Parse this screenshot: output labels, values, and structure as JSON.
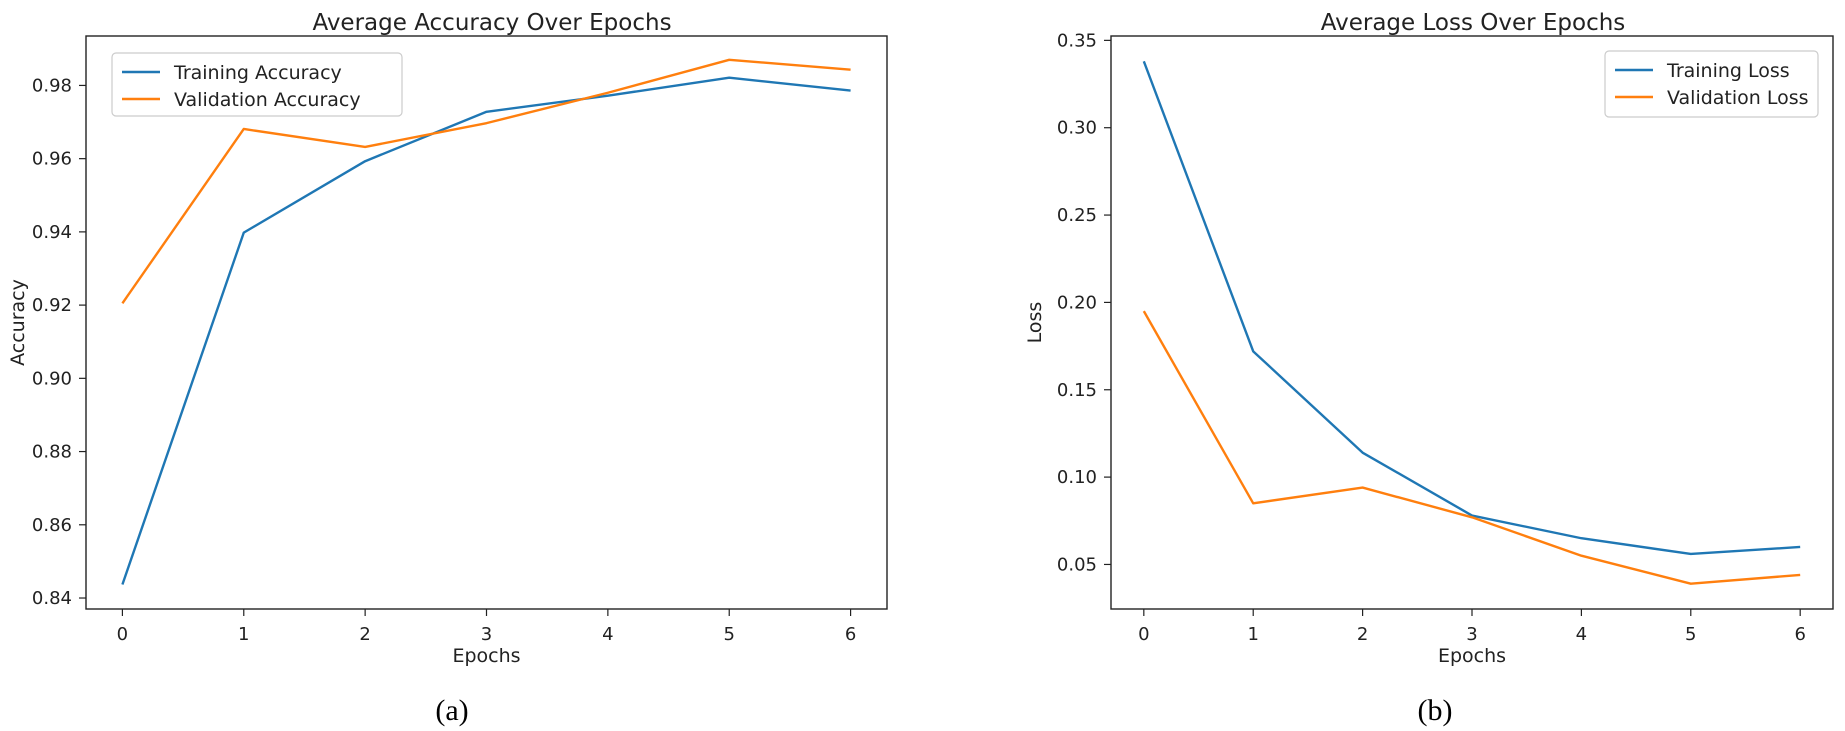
{
  "chart_data": [
    {
      "type": "line",
      "title": "Average Accuracy Over Epochs",
      "xlabel": "Epochs",
      "ylabel": "Accuracy",
      "x": [
        0,
        1,
        2,
        3,
        4,
        5,
        6
      ],
      "xticks": [
        "0",
        "1",
        "2",
        "3",
        "4",
        "5",
        "6"
      ],
      "yticks": [
        "0.84",
        "0.86",
        "0.88",
        "0.90",
        "0.92",
        "0.94",
        "0.96",
        "0.98"
      ],
      "xlim": [
        -0.3,
        6.3
      ],
      "ylim": [
        0.837,
        0.9935
      ],
      "grid": false,
      "legend_position": "top-left",
      "caption": "(a)",
      "series": [
        {
          "name": "Training Accuracy",
          "color": "#1f77b4",
          "values": [
            0.8437,
            0.9398,
            0.9593,
            0.9728,
            0.9772,
            0.9821,
            0.9786
          ]
        },
        {
          "name": "Validation Accuracy",
          "color": "#ff7f0e",
          "values": [
            0.9205,
            0.9681,
            0.9632,
            0.9697,
            0.978,
            0.987,
            0.9843
          ]
        }
      ]
    },
    {
      "type": "line",
      "title": "Average Loss Over Epochs",
      "xlabel": "Epochs",
      "ylabel": "Loss",
      "x": [
        0,
        1,
        2,
        3,
        4,
        5,
        6
      ],
      "xticks": [
        "0",
        "1",
        "2",
        "3",
        "4",
        "5",
        "6"
      ],
      "yticks": [
        "0.05",
        "0.10",
        "0.15",
        "0.20",
        "0.25",
        "0.30",
        "0.35"
      ],
      "xlim": [
        -0.3,
        6.3
      ],
      "ylim": [
        0.0245,
        0.3525
      ],
      "grid": false,
      "legend_position": "top-right",
      "caption": "(b)",
      "series": [
        {
          "name": "Training Loss",
          "color": "#1f77b4",
          "values": [
            0.338,
            0.172,
            0.114,
            0.078,
            0.065,
            0.056,
            0.06
          ]
        },
        {
          "name": "Validation Loss",
          "color": "#ff7f0e",
          "values": [
            0.195,
            0.085,
            0.094,
            0.077,
            0.055,
            0.039,
            0.044
          ]
        }
      ]
    }
  ]
}
